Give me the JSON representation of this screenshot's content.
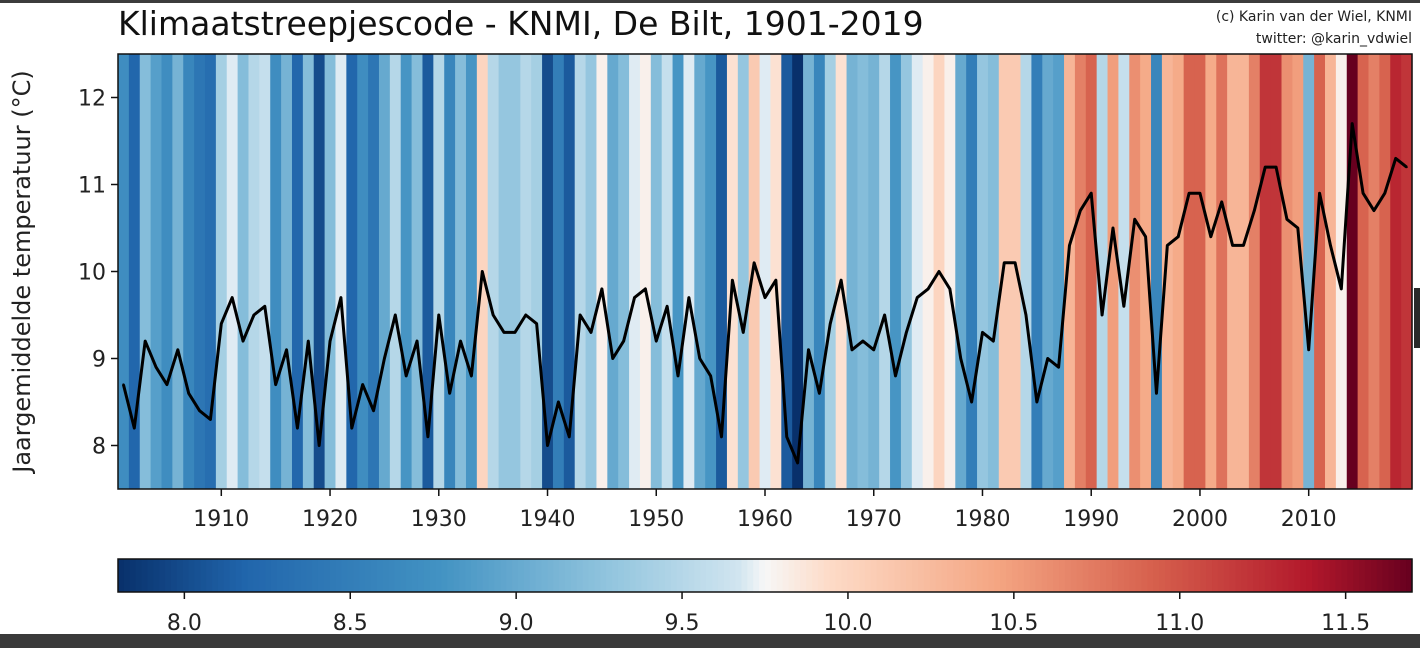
{
  "title": "Klimaatstreepjescode - KNMI, De Bilt, 1901-2019",
  "credit": {
    "line1": "(c) Karin van der Wiel, KNMI",
    "line2": "twitter: @karin_vdwiel"
  },
  "chart_data": {
    "type": "line",
    "title": "Klimaatstreepjescode - KNMI, De Bilt, 1901-2019",
    "ylabel": "Jaargemiddelde temperatuur (°C)",
    "xlabel": "",
    "xlim": [
      1901,
      2019
    ],
    "ylim": [
      7.5,
      12.5
    ],
    "x_ticks": [
      1910,
      1920,
      1930,
      1940,
      1950,
      1960,
      1970,
      1980,
      1990,
      2000,
      2010
    ],
    "y_ticks": [
      8,
      9,
      10,
      11,
      12
    ],
    "grid": false,
    "background": "warming stripes, one colored stripe per year",
    "colorbar": {
      "range": [
        7.8,
        11.7
      ],
      "ticks": [
        "8.0",
        "8.5",
        "9.0",
        "9.5",
        "10.0",
        "10.5",
        "11.0",
        "11.5"
      ],
      "colormap": "RdBu_r"
    },
    "series": [
      {
        "color": "#000000",
        "x": [
          1901,
          1902,
          1903,
          1904,
          1905,
          1906,
          1907,
          1908,
          1909,
          1910,
          1911,
          1912,
          1913,
          1914,
          1915,
          1916,
          1917,
          1918,
          1919,
          1920,
          1921,
          1922,
          1923,
          1924,
          1925,
          1926,
          1927,
          1928,
          1929,
          1930,
          1931,
          1932,
          1933,
          1934,
          1935,
          1936,
          1937,
          1938,
          1939,
          1940,
          1941,
          1942,
          1943,
          1944,
          1945,
          1946,
          1947,
          1948,
          1949,
          1950,
          1951,
          1952,
          1953,
          1954,
          1955,
          1956,
          1957,
          1958,
          1959,
          1960,
          1961,
          1962,
          1963,
          1964,
          1965,
          1966,
          1967,
          1968,
          1969,
          1970,
          1971,
          1972,
          1973,
          1974,
          1975,
          1976,
          1977,
          1978,
          1979,
          1980,
          1981,
          1982,
          1983,
          1984,
          1985,
          1986,
          1987,
          1988,
          1989,
          1990,
          1991,
          1992,
          1993,
          1994,
          1995,
          1996,
          1997,
          1998,
          1999,
          2000,
          2001,
          2002,
          2003,
          2004,
          2005,
          2006,
          2007,
          2008,
          2009,
          2010,
          2011,
          2012,
          2013,
          2014,
          2015,
          2016,
          2017,
          2018,
          2019
        ],
        "values": [
          8.7,
          8.2,
          9.2,
          8.9,
          8.7,
          9.1,
          8.6,
          8.4,
          8.3,
          9.4,
          9.7,
          9.2,
          9.5,
          9.6,
          8.7,
          9.1,
          8.2,
          9.2,
          8.0,
          9.2,
          9.7,
          8.2,
          8.7,
          8.4,
          9.0,
          9.5,
          8.8,
          9.2,
          8.1,
          9.5,
          8.6,
          9.2,
          8.8,
          10.0,
          9.5,
          9.3,
          9.3,
          9.5,
          9.4,
          8.0,
          8.5,
          8.1,
          9.5,
          9.3,
          9.8,
          9.0,
          9.2,
          9.7,
          9.8,
          9.2,
          9.6,
          8.8,
          9.7,
          9.0,
          8.8,
          8.1,
          9.9,
          9.3,
          10.1,
          9.7,
          9.9,
          8.1,
          7.8,
          9.1,
          8.6,
          9.4,
          9.9,
          9.1,
          9.2,
          9.1,
          9.5,
          8.8,
          9.3,
          9.7,
          9.8,
          10.0,
          9.8,
          9.0,
          8.5,
          9.3,
          9.2,
          10.1,
          10.1,
          9.5,
          8.5,
          9.0,
          8.9,
          10.3,
          10.7,
          10.9,
          9.5,
          10.5,
          9.6,
          10.6,
          10.4,
          8.6,
          10.3,
          10.4,
          10.9,
          10.9,
          10.4,
          10.8,
          10.3,
          10.3,
          10.7,
          11.2,
          11.2,
          10.6,
          10.5,
          9.1,
          10.9,
          10.3,
          9.8,
          11.7,
          10.9,
          10.7,
          10.9,
          11.3,
          11.2
        ]
      }
    ]
  }
}
